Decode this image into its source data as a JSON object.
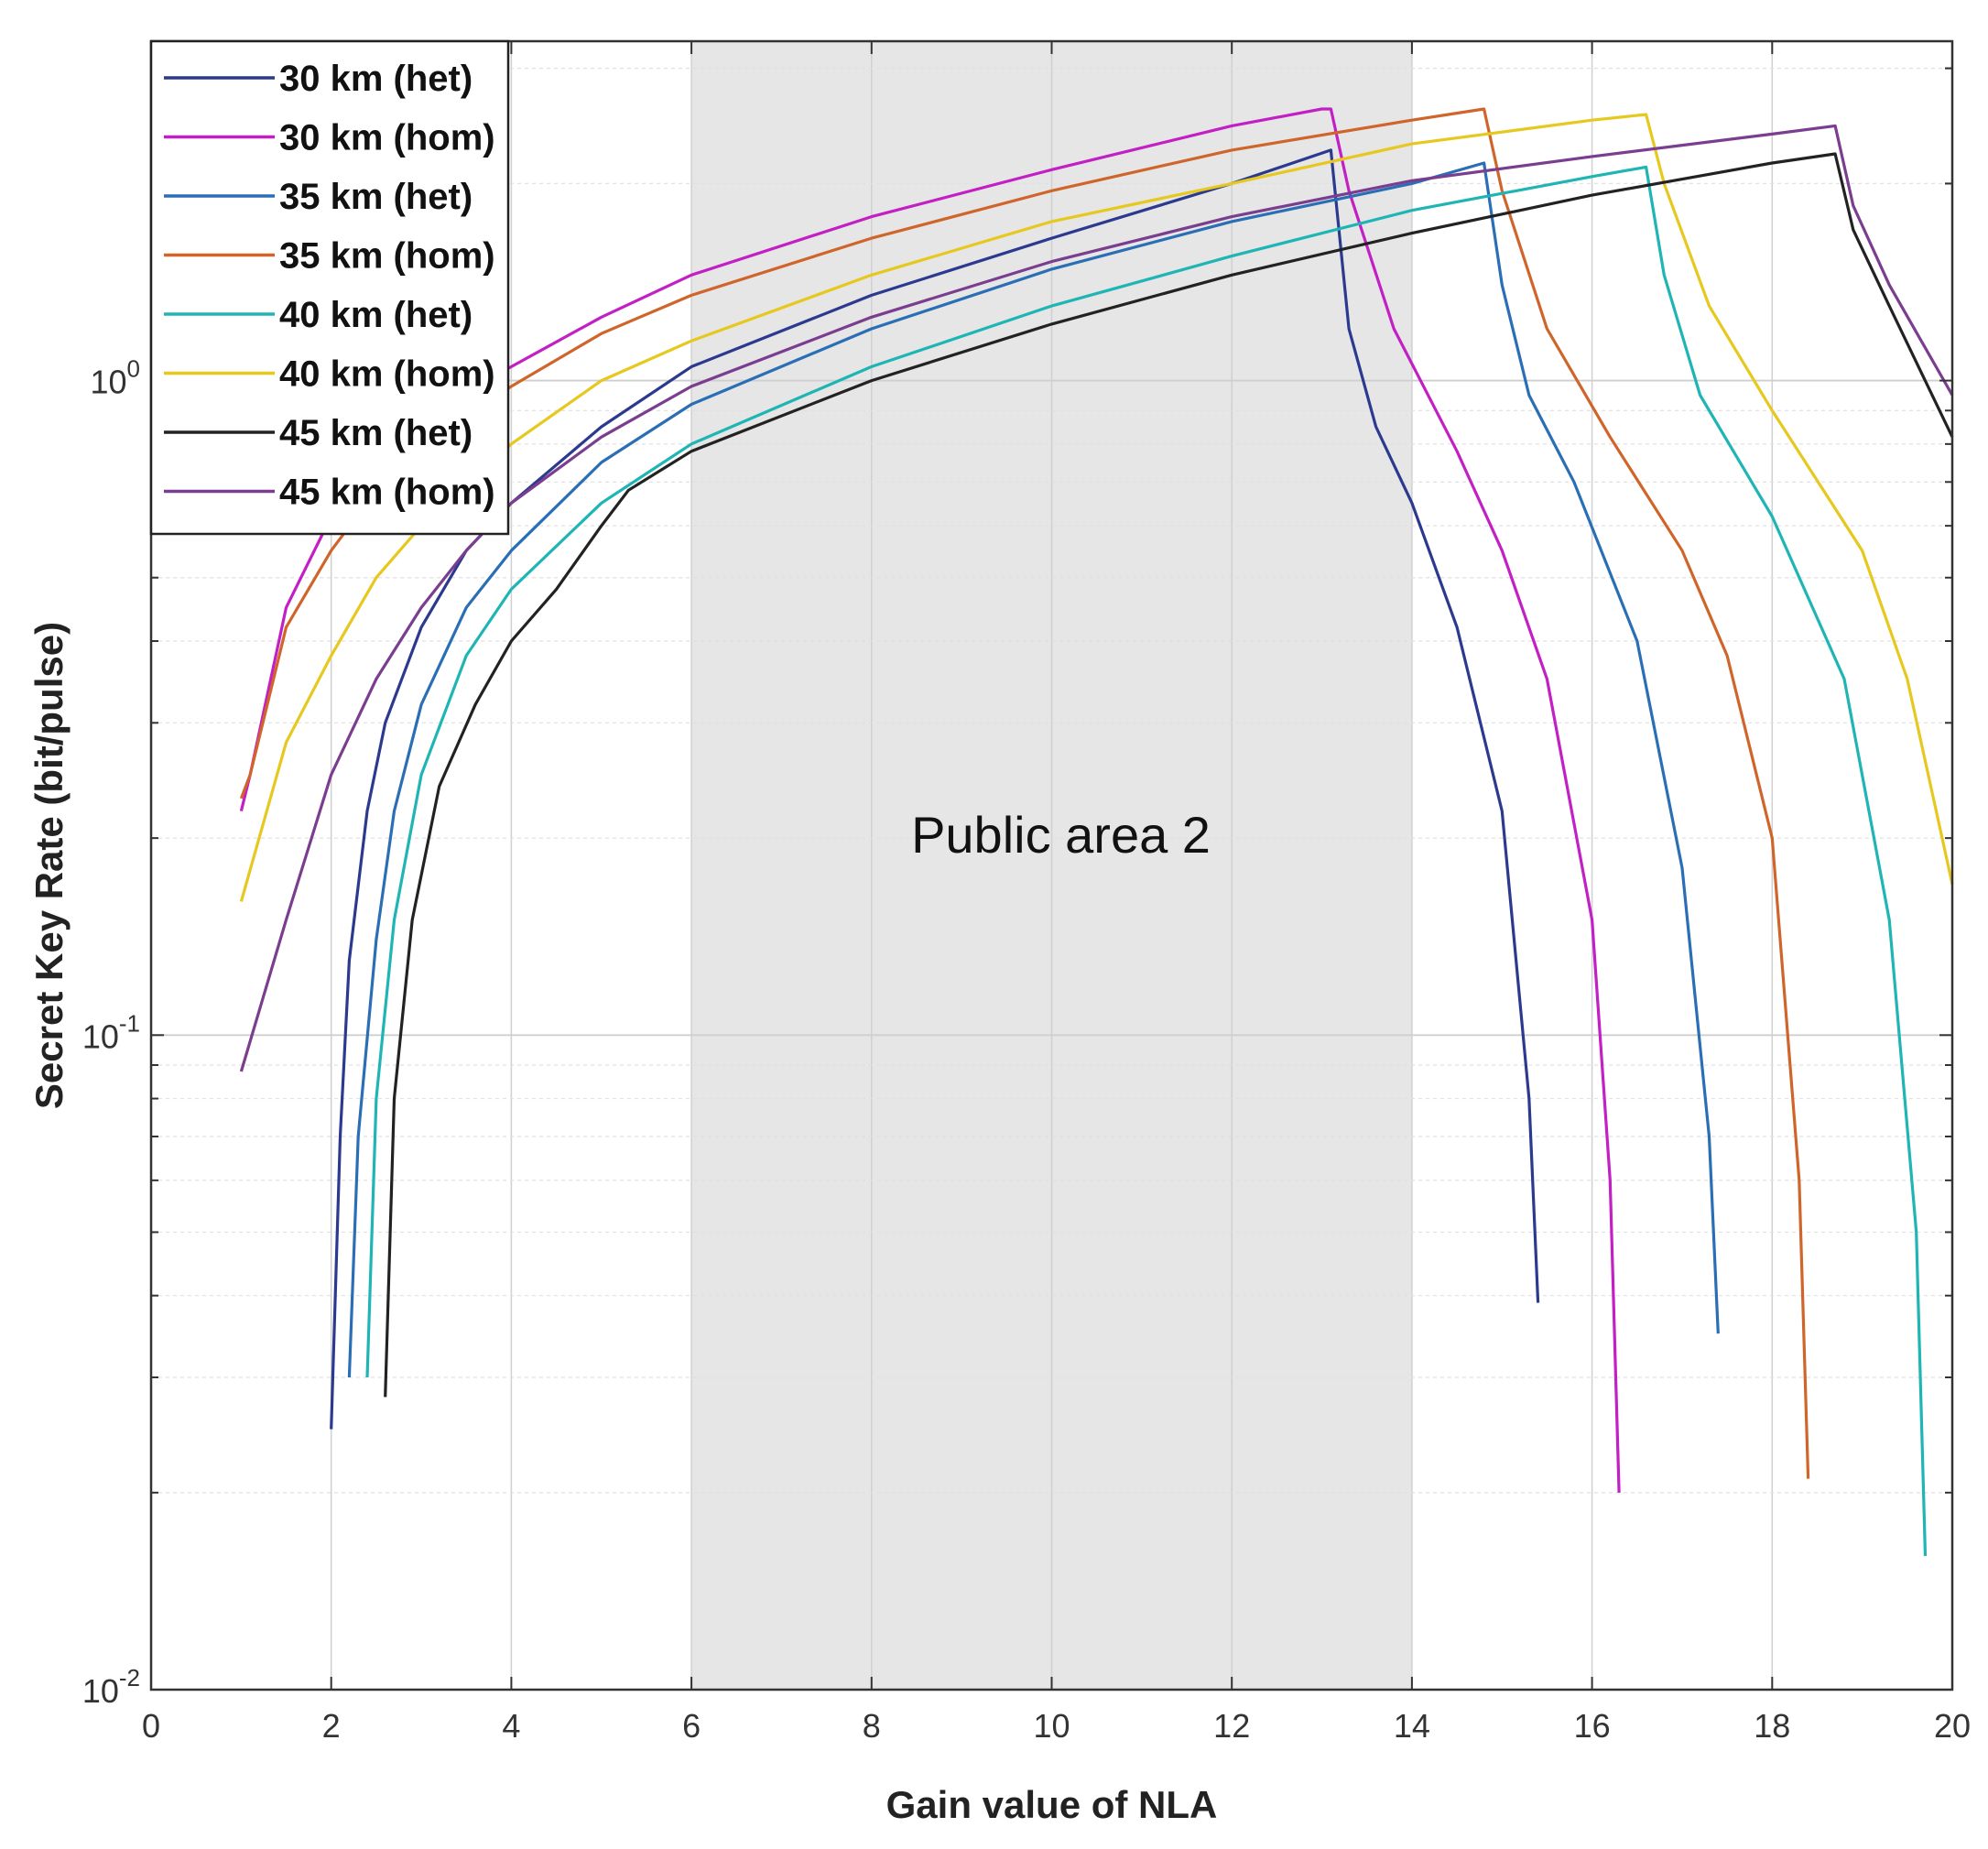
{
  "chart_data": {
    "type": "line",
    "xlabel": "Gain value of NLA",
    "ylabel": "Secret Key Rate (bit/pulse)",
    "xlim": [
      0,
      20
    ],
    "ylim": [
      0.01,
      3.3
    ],
    "yscale": "log",
    "grid": true,
    "legend_position": "top-left",
    "x_ticks": [
      "0",
      "2",
      "4",
      "6",
      "8",
      "10",
      "12",
      "14",
      "16",
      "18",
      "20"
    ],
    "y_ticks": [
      {
        "base": "10",
        "exp": "0"
      },
      {
        "base": "10",
        "exp": "-1"
      },
      {
        "base": "10",
        "exp": "-2"
      }
    ],
    "shaded_region": {
      "x_range": [
        6,
        14
      ],
      "label": "Public area 2",
      "color": "#e6e6e6"
    },
    "series": [
      {
        "name": "30 km (het)",
        "color": "#2b3a8f",
        "points": [
          [
            2.0,
            0.025
          ],
          [
            2.1,
            0.07
          ],
          [
            2.2,
            0.13
          ],
          [
            2.4,
            0.22
          ],
          [
            2.6,
            0.3
          ],
          [
            3.0,
            0.42
          ],
          [
            3.5,
            0.55
          ],
          [
            4.0,
            0.65
          ],
          [
            5.0,
            0.85
          ],
          [
            6.0,
            1.05
          ],
          [
            8.0,
            1.35
          ],
          [
            10.0,
            1.65
          ],
          [
            12.0,
            2.0
          ],
          [
            13.1,
            2.25
          ],
          [
            13.3,
            1.2
          ],
          [
            13.6,
            0.85
          ],
          [
            14.0,
            0.65
          ],
          [
            14.5,
            0.42
          ],
          [
            15.0,
            0.22
          ],
          [
            15.3,
            0.08
          ],
          [
            15.4,
            0.039
          ]
        ]
      },
      {
        "name": "30 km (hom)",
        "color": "#c21fc4",
        "points": [
          [
            1.0,
            0.22
          ],
          [
            1.1,
            0.25
          ],
          [
            1.5,
            0.45
          ],
          [
            2.0,
            0.62
          ],
          [
            2.5,
            0.78
          ],
          [
            3.0,
            0.88
          ],
          [
            4.0,
            1.05
          ],
          [
            5.0,
            1.25
          ],
          [
            6.0,
            1.45
          ],
          [
            8.0,
            1.78
          ],
          [
            10.0,
            2.1
          ],
          [
            12.0,
            2.45
          ],
          [
            13.0,
            2.6
          ],
          [
            13.1,
            2.6
          ],
          [
            13.3,
            1.95
          ],
          [
            13.8,
            1.2
          ],
          [
            14.5,
            0.78
          ],
          [
            15.0,
            0.55
          ],
          [
            15.5,
            0.35
          ],
          [
            16.0,
            0.15
          ],
          [
            16.2,
            0.06
          ],
          [
            16.3,
            0.02
          ]
        ]
      },
      {
        "name": "35 km (het)",
        "color": "#2a6fb5",
        "points": [
          [
            2.2,
            0.03
          ],
          [
            2.3,
            0.07
          ],
          [
            2.5,
            0.14
          ],
          [
            2.7,
            0.22
          ],
          [
            3.0,
            0.32
          ],
          [
            3.5,
            0.45
          ],
          [
            4.0,
            0.55
          ],
          [
            5.0,
            0.75
          ],
          [
            6.0,
            0.92
          ],
          [
            8.0,
            1.2
          ],
          [
            10.0,
            1.48
          ],
          [
            12.0,
            1.75
          ],
          [
            14.0,
            2.0
          ],
          [
            14.8,
            2.15
          ],
          [
            15.0,
            1.4
          ],
          [
            15.3,
            0.95
          ],
          [
            15.8,
            0.7
          ],
          [
            16.5,
            0.4
          ],
          [
            17.0,
            0.18
          ],
          [
            17.3,
            0.07
          ],
          [
            17.4,
            0.035
          ]
        ]
      },
      {
        "name": "35 km (hom)",
        "color": "#d0652b",
        "points": [
          [
            1.0,
            0.23
          ],
          [
            1.1,
            0.25
          ],
          [
            1.5,
            0.42
          ],
          [
            2.0,
            0.55
          ],
          [
            2.5,
            0.68
          ],
          [
            3.0,
            0.8
          ],
          [
            4.0,
            0.98
          ],
          [
            5.0,
            1.18
          ],
          [
            6.0,
            1.35
          ],
          [
            8.0,
            1.65
          ],
          [
            10.0,
            1.95
          ],
          [
            12.0,
            2.25
          ],
          [
            14.0,
            2.5
          ],
          [
            14.8,
            2.6
          ],
          [
            15.0,
            1.95
          ],
          [
            15.5,
            1.2
          ],
          [
            16.2,
            0.82
          ],
          [
            17.0,
            0.55
          ],
          [
            17.5,
            0.38
          ],
          [
            18.0,
            0.2
          ],
          [
            18.3,
            0.06
          ],
          [
            18.4,
            0.021
          ]
        ]
      },
      {
        "name": "40 km (het)",
        "color": "#1fb5b5",
        "points": [
          [
            2.4,
            0.03
          ],
          [
            2.5,
            0.08
          ],
          [
            2.7,
            0.15
          ],
          [
            3.0,
            0.25
          ],
          [
            3.5,
            0.38
          ],
          [
            4.0,
            0.48
          ],
          [
            5.0,
            0.65
          ],
          [
            6.0,
            0.8
          ],
          [
            8.0,
            1.05
          ],
          [
            10.0,
            1.3
          ],
          [
            12.0,
            1.55
          ],
          [
            14.0,
            1.82
          ],
          [
            16.0,
            2.05
          ],
          [
            16.6,
            2.12
          ],
          [
            16.8,
            1.45
          ],
          [
            17.2,
            0.95
          ],
          [
            18.0,
            0.62
          ],
          [
            18.8,
            0.35
          ],
          [
            19.3,
            0.15
          ],
          [
            19.6,
            0.05
          ],
          [
            19.7,
            0.016
          ]
        ]
      },
      {
        "name": "40 km (hom)",
        "color": "#e6c81f",
        "points": [
          [
            1.0,
            0.16
          ],
          [
            1.5,
            0.28
          ],
          [
            2.0,
            0.38
          ],
          [
            2.5,
            0.5
          ],
          [
            3.0,
            0.6
          ],
          [
            4.0,
            0.8
          ],
          [
            5.0,
            1.0
          ],
          [
            6.0,
            1.15
          ],
          [
            8.0,
            1.45
          ],
          [
            10.0,
            1.75
          ],
          [
            12.0,
            2.0
          ],
          [
            14.0,
            2.3
          ],
          [
            16.0,
            2.5
          ],
          [
            16.6,
            2.55
          ],
          [
            16.8,
            2.0
          ],
          [
            17.3,
            1.3
          ],
          [
            18.0,
            0.9
          ],
          [
            19.0,
            0.55
          ],
          [
            19.5,
            0.35
          ],
          [
            20.0,
            0.17
          ]
        ]
      },
      {
        "name": "45 km (het)",
        "color": "#222222",
        "points": [
          [
            2.6,
            0.028
          ],
          [
            2.7,
            0.08
          ],
          [
            2.9,
            0.15
          ],
          [
            3.2,
            0.24
          ],
          [
            3.6,
            0.32
          ],
          [
            4.0,
            0.4
          ],
          [
            4.5,
            0.48
          ],
          [
            5.0,
            0.6
          ],
          [
            5.3,
            0.68
          ],
          [
            6.0,
            0.78
          ],
          [
            8.0,
            1.0
          ],
          [
            10.0,
            1.22
          ],
          [
            12.0,
            1.45
          ],
          [
            14.0,
            1.68
          ],
          [
            16.0,
            1.92
          ],
          [
            18.0,
            2.15
          ],
          [
            18.7,
            2.22
          ],
          [
            18.9,
            1.7
          ],
          [
            19.3,
            1.3
          ],
          [
            20.0,
            0.82
          ]
        ]
      },
      {
        "name": "45 km (hom)",
        "color": "#7a3d8f",
        "points": [
          [
            1.0,
            0.088
          ],
          [
            1.5,
            0.15
          ],
          [
            2.0,
            0.25
          ],
          [
            2.5,
            0.35
          ],
          [
            3.0,
            0.45
          ],
          [
            3.5,
            0.55
          ],
          [
            4.0,
            0.65
          ],
          [
            5.0,
            0.82
          ],
          [
            6.0,
            0.98
          ],
          [
            8.0,
            1.25
          ],
          [
            10.0,
            1.52
          ],
          [
            12.0,
            1.78
          ],
          [
            14.0,
            2.02
          ],
          [
            16.0,
            2.2
          ],
          [
            18.0,
            2.38
          ],
          [
            18.7,
            2.45
          ],
          [
            18.9,
            1.85
          ],
          [
            19.3,
            1.4
          ],
          [
            20.0,
            0.95
          ]
        ]
      }
    ]
  }
}
